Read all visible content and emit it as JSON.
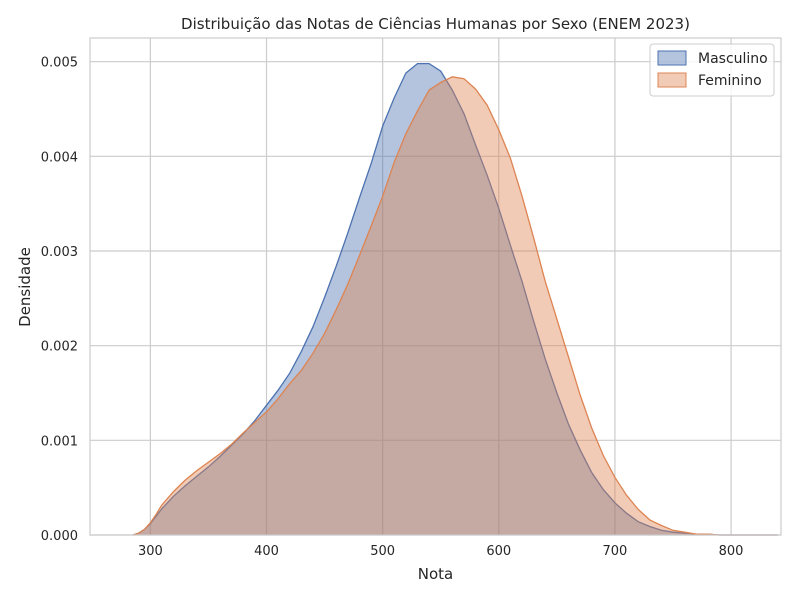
{
  "chart_data": {
    "type": "area",
    "title": "Distribuição das Notas de Ciências Humanas por Sexo (ENEM 2023)",
    "xlabel": "Nota",
    "ylabel": "Densidade",
    "xlim": [
      248,
      843
    ],
    "ylim": [
      0,
      0.00525
    ],
    "xticks": [
      300,
      400,
      500,
      600,
      700,
      800
    ],
    "yticks": [
      0.0,
      0.001,
      0.002,
      0.003,
      0.004,
      0.005
    ],
    "ytick_labels": [
      "0.000",
      "0.001",
      "0.002",
      "0.003",
      "0.004",
      "0.005"
    ],
    "grid": true,
    "legend_position": "top-right",
    "series": [
      {
        "name": "Masculino",
        "color": "#4c72b0",
        "x": [
          285,
          290,
          295,
          300,
          305,
          310,
          320,
          330,
          340,
          350,
          360,
          370,
          380,
          390,
          400,
          410,
          420,
          430,
          440,
          450,
          460,
          470,
          480,
          490,
          500,
          510,
          520,
          530,
          540,
          550,
          560,
          570,
          580,
          590,
          600,
          610,
          620,
          630,
          640,
          650,
          660,
          670,
          680,
          690,
          700,
          710,
          720,
          730,
          740,
          750,
          760,
          770,
          780,
          790,
          800,
          820,
          840
        ],
        "y": [
          0.0,
          2e-05,
          6e-05,
          0.00012,
          0.0002,
          0.00028,
          0.00041,
          0.00052,
          0.00062,
          0.00072,
          0.00083,
          0.00095,
          0.00107,
          0.00121,
          0.00137,
          0.00153,
          0.00171,
          0.00194,
          0.0022,
          0.00251,
          0.00284,
          0.00319,
          0.00356,
          0.00392,
          0.00432,
          0.00462,
          0.00488,
          0.00498,
          0.00498,
          0.0049,
          0.0047,
          0.00445,
          0.00412,
          0.0038,
          0.00345,
          0.00306,
          0.00268,
          0.00226,
          0.00186,
          0.0015,
          0.00117,
          0.0009,
          0.00066,
          0.00048,
          0.00034,
          0.00023,
          0.00014,
          9e-05,
          5e-05,
          3e-05,
          2e-05,
          1e-05,
          1e-05,
          0.0,
          0.0,
          0.0,
          0.0
        ]
      },
      {
        "name": "Feminino",
        "color": "#dd8452",
        "x": [
          285,
          290,
          295,
          300,
          305,
          310,
          320,
          330,
          340,
          350,
          360,
          370,
          380,
          390,
          400,
          410,
          420,
          430,
          440,
          450,
          460,
          470,
          480,
          490,
          500,
          510,
          520,
          530,
          540,
          550,
          560,
          570,
          580,
          590,
          600,
          610,
          620,
          630,
          640,
          650,
          660,
          670,
          680,
          690,
          700,
          710,
          720,
          730,
          740,
          750,
          760,
          770,
          780,
          790,
          800,
          820,
          840
        ],
        "y": [
          0.0,
          2e-05,
          6e-05,
          0.00013,
          0.00022,
          0.00032,
          0.00046,
          0.00058,
          0.00068,
          0.00077,
          0.00086,
          0.00096,
          0.00108,
          0.00119,
          0.0013,
          0.00144,
          0.0016,
          0.00174,
          0.00192,
          0.00213,
          0.00238,
          0.00265,
          0.00295,
          0.00326,
          0.00358,
          0.00394,
          0.00424,
          0.00448,
          0.0047,
          0.00478,
          0.00484,
          0.00482,
          0.00471,
          0.00454,
          0.00428,
          0.00398,
          0.00358,
          0.00314,
          0.00268,
          0.00228,
          0.00188,
          0.00148,
          0.00113,
          0.00084,
          0.00061,
          0.00042,
          0.00027,
          0.00016,
          0.0001,
          5e-05,
          3e-05,
          1e-05,
          1e-05,
          0.0,
          0.0,
          0.0,
          0.0
        ]
      }
    ]
  }
}
